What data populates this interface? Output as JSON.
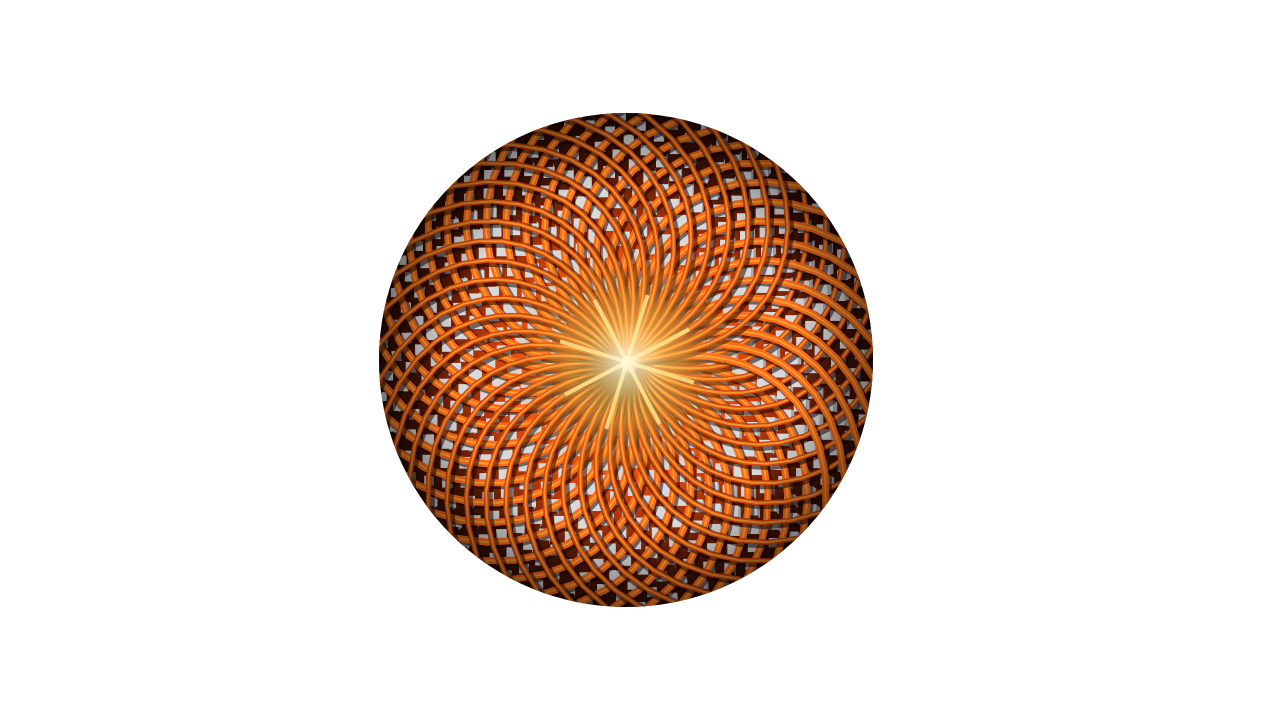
{
  "scene": {
    "subject": "",
    "colors": {
      "background": "#ffffff",
      "lattice_hot": "#fff6b0",
      "lattice_bright": "#ffb23a",
      "lattice_mid": "#ff6a18",
      "lattice_deep": "#d8450c",
      "lattice_dark": "#4a1505",
      "lattice_shadow": "#1c0602",
      "cube_face": "#d9d9d9",
      "cube_side": "#a9a9a9",
      "cube_top": "#ededed"
    }
  }
}
